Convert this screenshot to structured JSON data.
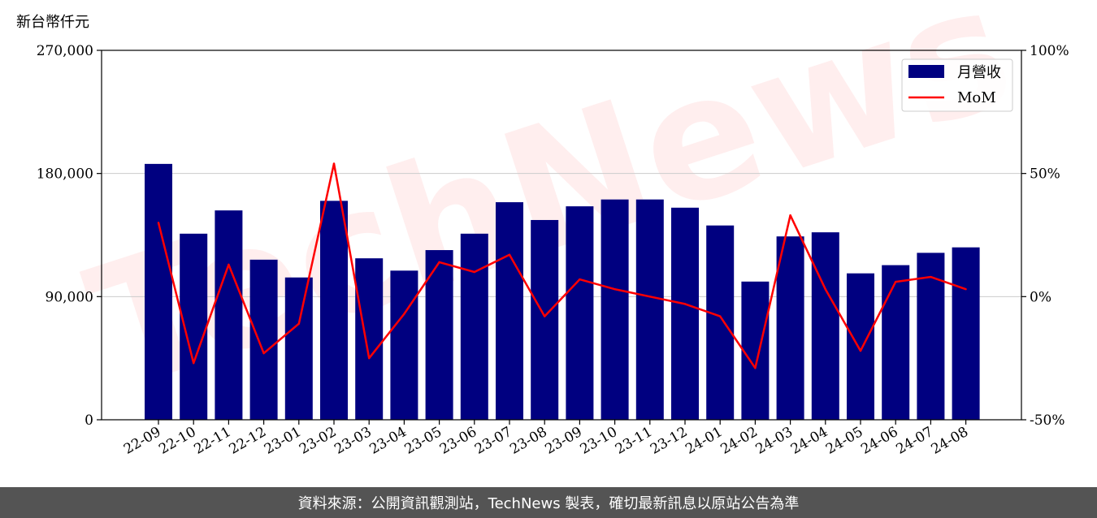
{
  "chart_data": {
    "type": "bar",
    "y_unit_label": "新台幣仟元",
    "categories": [
      "22-09",
      "22-10",
      "22-11",
      "22-12",
      "23-01",
      "23-02",
      "23-03",
      "23-04",
      "23-05",
      "23-06",
      "23-07",
      "23-08",
      "23-09",
      "23-10",
      "23-11",
      "23-12",
      "24-01",
      "24-02",
      "24-03",
      "24-04",
      "24-05",
      "24-06",
      "24-07",
      "24-08"
    ],
    "series": [
      {
        "name": "月營收",
        "kind": "bar",
        "axis": "left",
        "color": "#000080",
        "values": [
          187000,
          136000,
          153000,
          117000,
          104000,
          160000,
          118000,
          109000,
          124000,
          136000,
          159000,
          146000,
          156000,
          161000,
          161000,
          155000,
          142000,
          101000,
          134000,
          137000,
          107000,
          113000,
          122000,
          126000
        ]
      },
      {
        "name": "MoM",
        "kind": "line",
        "axis": "right",
        "color": "#ff0000",
        "values": [
          30,
          -27,
          13,
          -23,
          -11,
          54,
          -25,
          -7,
          14,
          10,
          17,
          -8,
          7,
          3,
          0,
          -3,
          -8,
          -29,
          33,
          3,
          -22,
          6,
          8,
          3
        ]
      }
    ],
    "y_left": {
      "ylim": [
        0,
        270000
      ],
      "ticks": [
        "0",
        "90,000",
        "180,000",
        "270,000"
      ],
      "tick_values": [
        0,
        90000,
        180000,
        270000
      ]
    },
    "y_right": {
      "ylim": [
        -50,
        100
      ],
      "ticks": [
        "-50%",
        "0%",
        "50%",
        "100%"
      ],
      "tick_values": [
        -50,
        0,
        50,
        100
      ]
    },
    "grid": "horizontal",
    "legend_position": "top-right",
    "watermark": "TechNews"
  },
  "footer": {
    "source_text": "資料來源：公開資訊觀測站，TechNews 製表，確切最新訊息以原站公告為準"
  },
  "colors": {
    "bar": "#000080",
    "line": "#ff0000",
    "footer_bg": "#545454"
  }
}
